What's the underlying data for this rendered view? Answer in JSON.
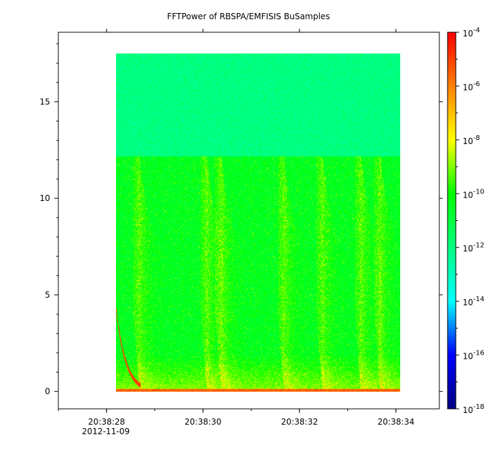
{
  "chart_data": {
    "type": "heatmap",
    "title": "FFTPower of RBSPA/EMFISIS  BuSamples",
    "xlabel": "",
    "ylabel": "",
    "x_ticks": [
      "20:38:28",
      "20:38:30",
      "20:38:32",
      "20:38:34"
    ],
    "x_date_label": "2012-11-09",
    "y_ticks": [
      0,
      5,
      10,
      15
    ],
    "ylim": [
      -0.9,
      18.6
    ],
    "xlim": [
      "20:38:27.0",
      "20:38:34.9"
    ],
    "data_extent": {
      "t_start": "20:38:28.2",
      "t_end": "20:38:34.1",
      "f_min": 0,
      "f_max": 17.5
    },
    "colorbar": {
      "scale": "log",
      "range": [
        1e-18,
        0.0001
      ],
      "tick_labels": [
        {
          "base": "10",
          "exp": "-4"
        },
        {
          "base": "10",
          "exp": "-6"
        },
        {
          "base": "10",
          "exp": "-8"
        },
        {
          "base": "10",
          "exp": "-10"
        },
        {
          "base": "10",
          "exp": "-12"
        },
        {
          "base": "10",
          "exp": "-14"
        },
        {
          "base": "10",
          "exp": "-16"
        },
        {
          "base": "10",
          "exp": "-18"
        }
      ],
      "colors": [
        "#000080",
        "#0000ff",
        "#00ffff",
        "#00ff80",
        "#00ff00",
        "#ffff00",
        "#ff8000",
        "#ff0000"
      ]
    },
    "features": {
      "upper_band": {
        "f_range": [
          12.2,
          17.5
        ],
        "log_power": -12
      },
      "lower_band": {
        "f_range": [
          0,
          12.2
        ],
        "log_power": -10.5
      },
      "chorus_bursts_t": [
        "20:38:28.6",
        "20:38:30.0",
        "20:38:30.3",
        "20:38:31.6",
        "20:38:32.4",
        "20:38:33.2",
        "20:38:33.6"
      ],
      "low_freq_line": {
        "f": 0,
        "log_power": -6
      }
    }
  }
}
